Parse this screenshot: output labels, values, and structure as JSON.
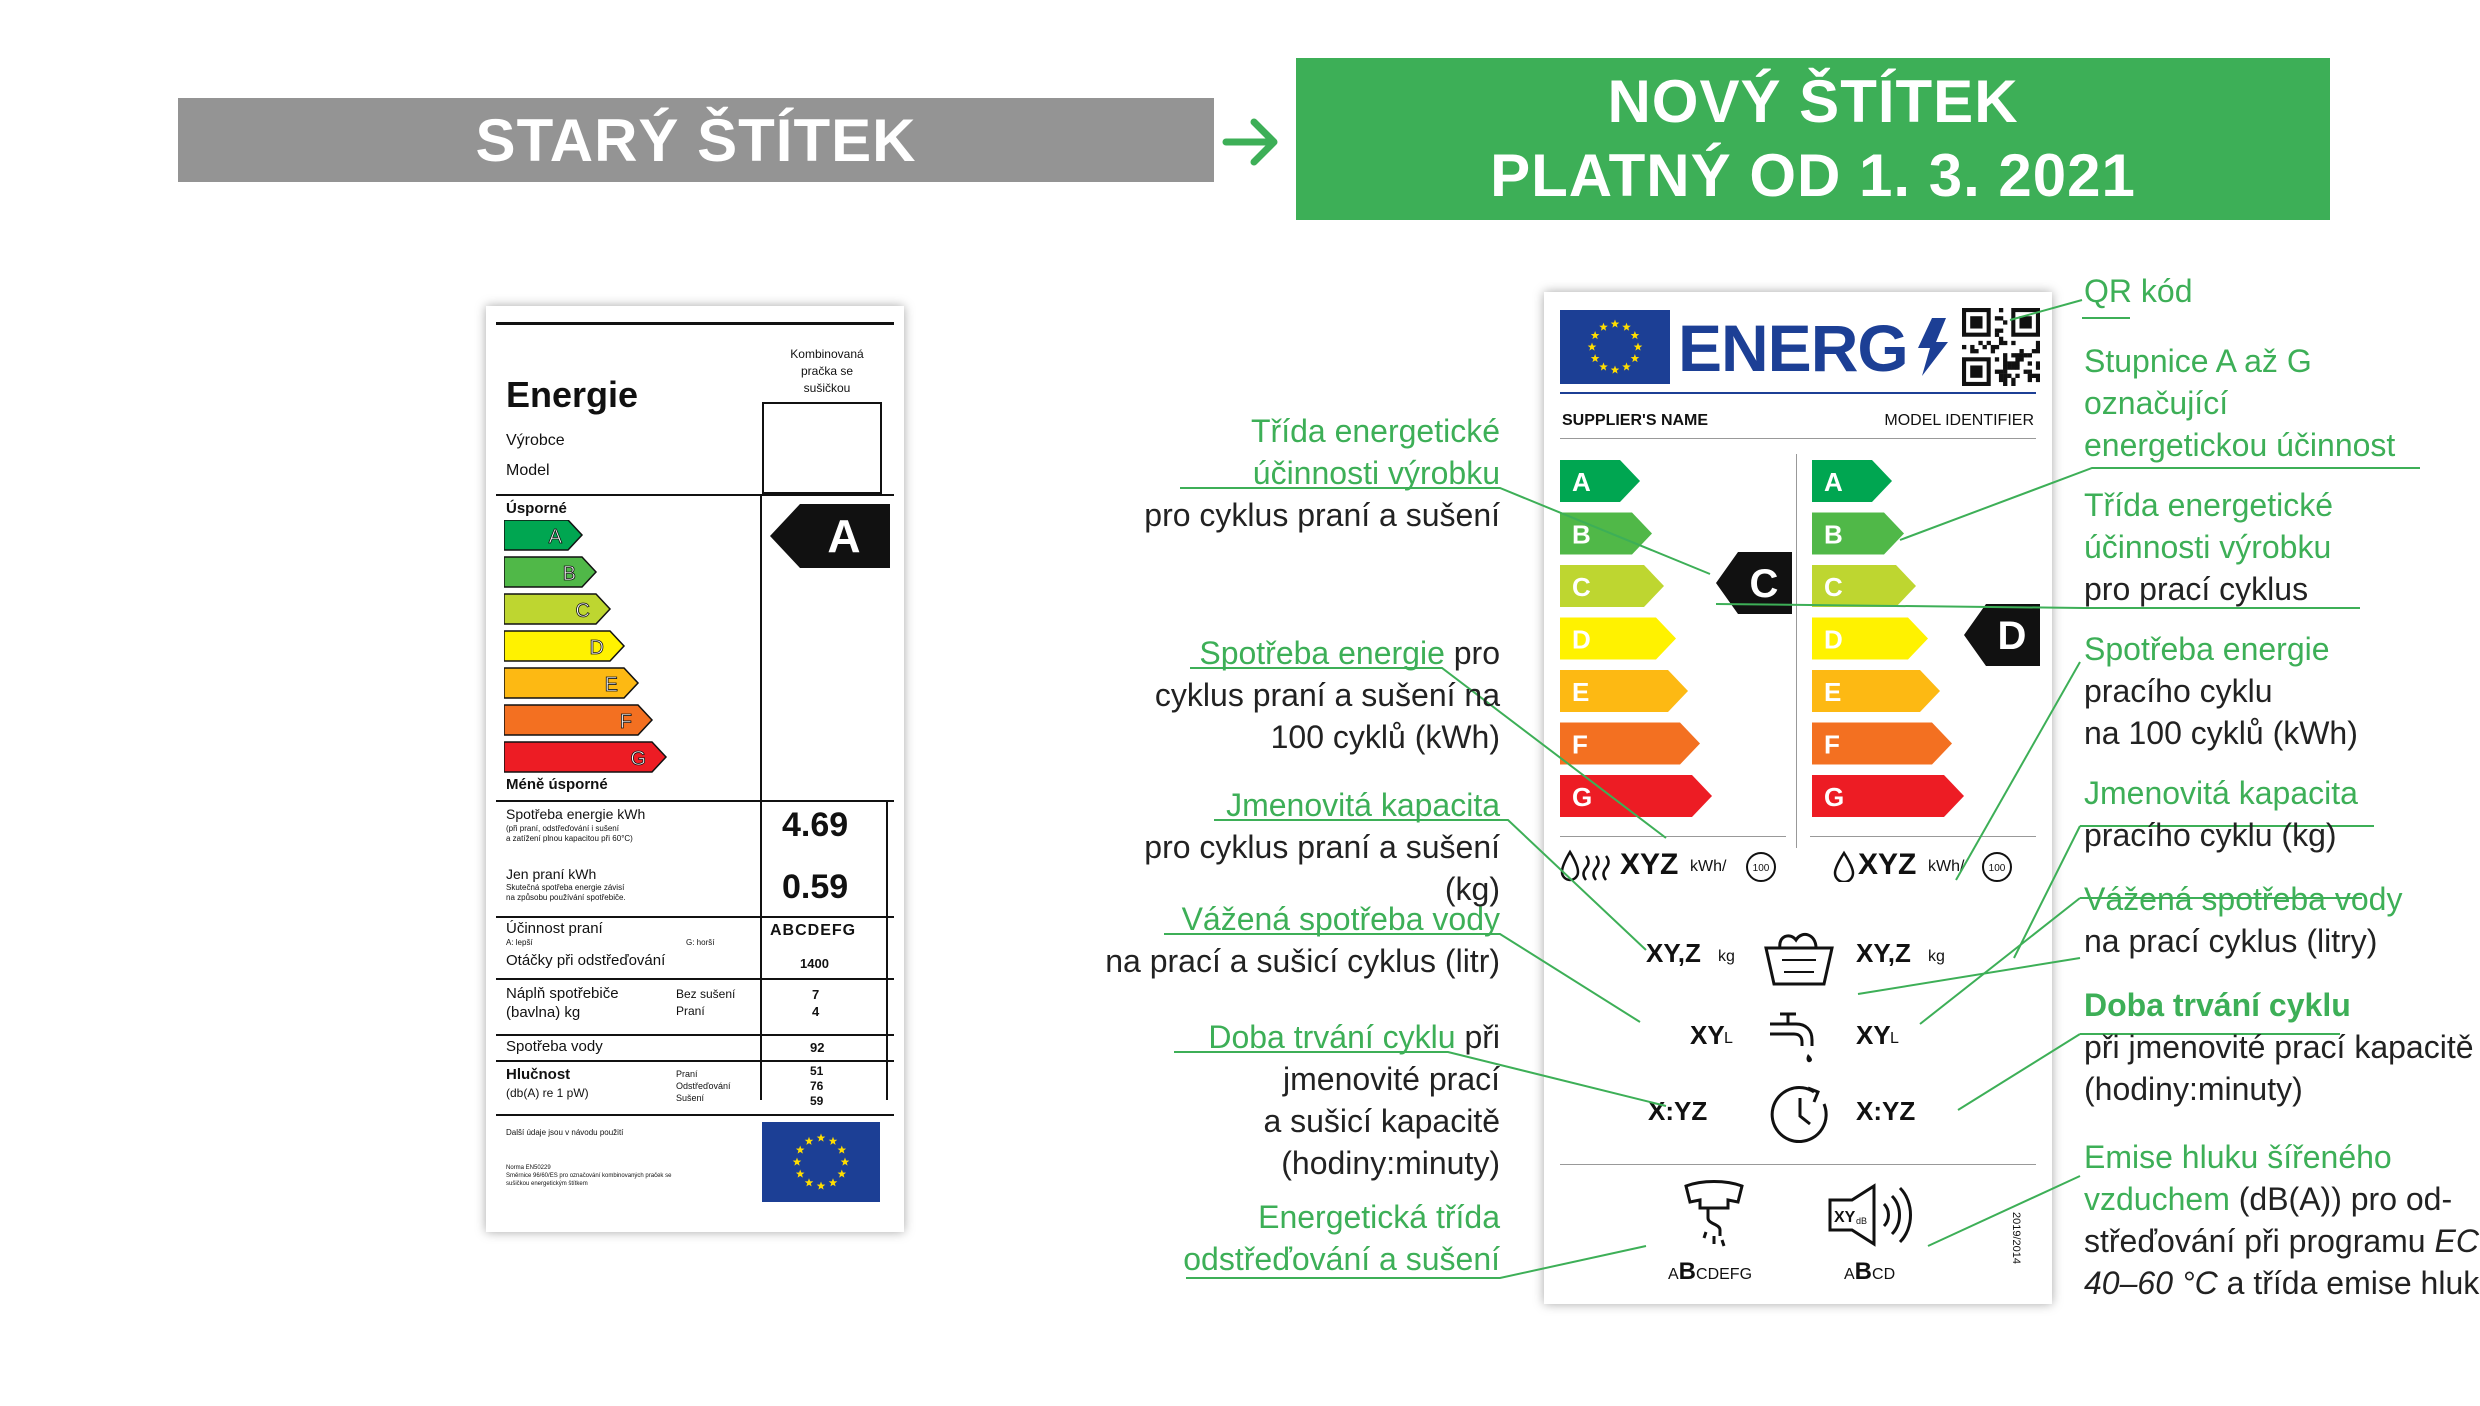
{
  "header": {
    "old_title": "STARÝ ŠTÍTEK",
    "new_title_line1": "NOVÝ ŠTÍTEK",
    "new_title_line2": "PLATNÝ OD 1. 3. 2021"
  },
  "colors": {
    "green_accent": "#3daf57",
    "grey_header": "#949494",
    "eu_blue": "#1c3f95",
    "eu_star": "#ffdd00",
    "class_colors": [
      "#00a651",
      "#50b848",
      "#bed630",
      "#fff200",
      "#fdb913",
      "#f37021",
      "#ed1c24"
    ]
  },
  "old_label": {
    "combined_heading": [
      "Kombinovaná",
      "pračka se",
      "sušičkou"
    ],
    "title": "Energie",
    "manufacturer": "Výrobce",
    "model": "Model",
    "efficient": "Úsporné",
    "less_efficient": "Méně úsporné",
    "classes": [
      "A",
      "B",
      "C",
      "D",
      "E",
      "F",
      "G"
    ],
    "rating": "A",
    "energy_consumption_label": "Spotřeba energie kWh",
    "energy_consumption_note": [
      "(při praní, odstřeďování i sušení",
      "a zatížení plnou kapacitou při 60°C)"
    ],
    "energy_consumption_value": "4.69",
    "wash_only_label": "Jen praní kWh",
    "wash_only_note": [
      "Skutečná spotřeba energie závisí",
      "na způsobu používání spotřebiče."
    ],
    "wash_only_value": "0.59",
    "wash_efficiency_label": "Účinnost praní",
    "wash_efficiency_scale": "ABCDEFG",
    "better": "A: lepší",
    "worse": "G: horší",
    "spin_label": "Otáčky při odstřeďování",
    "spin_value": "1400",
    "capacity_label": [
      "Náplň spotřebiče",
      "(bavlna) kg"
    ],
    "capacity_no_dry": "Bez sušení",
    "capacity_wash": "Praní",
    "capacity_values": [
      "7",
      "4"
    ],
    "water_label": "Spotřeba vody",
    "water_value": "92",
    "noise_label": "Hlučnost",
    "noise_unit": "(db(A) re 1 pW)",
    "noise_modes": [
      "Praní",
      "Odstřeďování",
      "Sušení"
    ],
    "noise_values": [
      "51",
      "76",
      "59"
    ],
    "more_info": "Další údaje jsou v návodu použití",
    "norm": [
      "Norma EN50229",
      "Směrnice 96/60/ES pro označování kombinovaných praček se",
      "sušičkou energetickým štítkem"
    ]
  },
  "new_label": {
    "energ": "ENERG",
    "supplier": "SUPPLIER'S NAME",
    "model": "MODEL IDENTIFIER",
    "classes": [
      "A",
      "B",
      "C",
      "D",
      "E",
      "F",
      "G"
    ],
    "rating_left": "C",
    "rating_right": "D",
    "energy_value": "XYZ",
    "energy_unit": "kWh/",
    "cycles": "100",
    "capacity_value": "XY,Z",
    "capacity_unit": "kg",
    "water_value": "XY",
    "water_unit": "L",
    "duration_value": "X:YZ",
    "spin_scale_small_a": "A",
    "spin_scale_big_b": "B",
    "spin_scale_rest": "CDEFG",
    "noise_small_a": "A",
    "noise_big_b": "B",
    "noise_rest": "CD",
    "noise_icon_text": "XY",
    "noise_icon_unit": "dB",
    "regulation": "2019/2014"
  },
  "annotations": {
    "qr": "QR kód",
    "scale": [
      "Stupnice A až G",
      "označující",
      "energetickou účinnost"
    ],
    "class_wash_green": [
      "Třída  energetické",
      "účinnosti výrobku"
    ],
    "class_wash_rest": "pro prací cyklus",
    "energy_wash_green": "Spotřeba energie",
    "energy_wash_rest": [
      "pracího cyklu",
      "na 100 cyklů (kWh)"
    ],
    "capacity_wash_green": "Jmenovitá kapacita",
    "capacity_wash_rest": "pracího cyklu (kg)",
    "water_wash_green": "Vážená spotřeba vody",
    "water_wash_rest": "na prací cyklus (litry)",
    "duration_wash_green": "Doba trvání cyklu",
    "duration_wash_rest": [
      "při jmenovité prací kapacitě",
      "(hodiny:minuty)"
    ],
    "noise_green": [
      "Emise hluku šířeného",
      "vzduchem"
    ],
    "noise_rest_1": " (dB(A)) pro od-",
    "noise_rest_2": "střeďování při programu ",
    "noise_eco": "ECO",
    "noise_eco_range": "40–60  °C",
    "noise_rest_3": " a třída emise hluku",
    "class_combo_green": [
      "Třída energetické",
      "účinnosti výrobku"
    ],
    "class_combo_rest": "pro cyklus praní a sušení",
    "energy_combo_green": "Spotřeba energie",
    "energy_combo_rest_1": " pro",
    "energy_combo_rest": [
      "cyklus praní a sušení na",
      "100 cyklů (kWh)"
    ],
    "capacity_combo_green": "Jmenovitá kapacita",
    "capacity_combo_rest": [
      "pro cyklus praní a sušení",
      "(kg)"
    ],
    "water_combo_green": "Vážená spotřeba vody",
    "water_combo_rest": "na prací a sušicí cyklus (litr)",
    "duration_combo_green": "Doba trvání cyklu",
    "duration_combo_rest_1": "  při",
    "duration_combo_rest": [
      "jmenovité prací",
      "a sušicí kapacitě",
      "(hodiny:minuty)"
    ],
    "spin_combo_green": [
      "Energetická třída",
      "odstřeďování a sušení"
    ]
  }
}
